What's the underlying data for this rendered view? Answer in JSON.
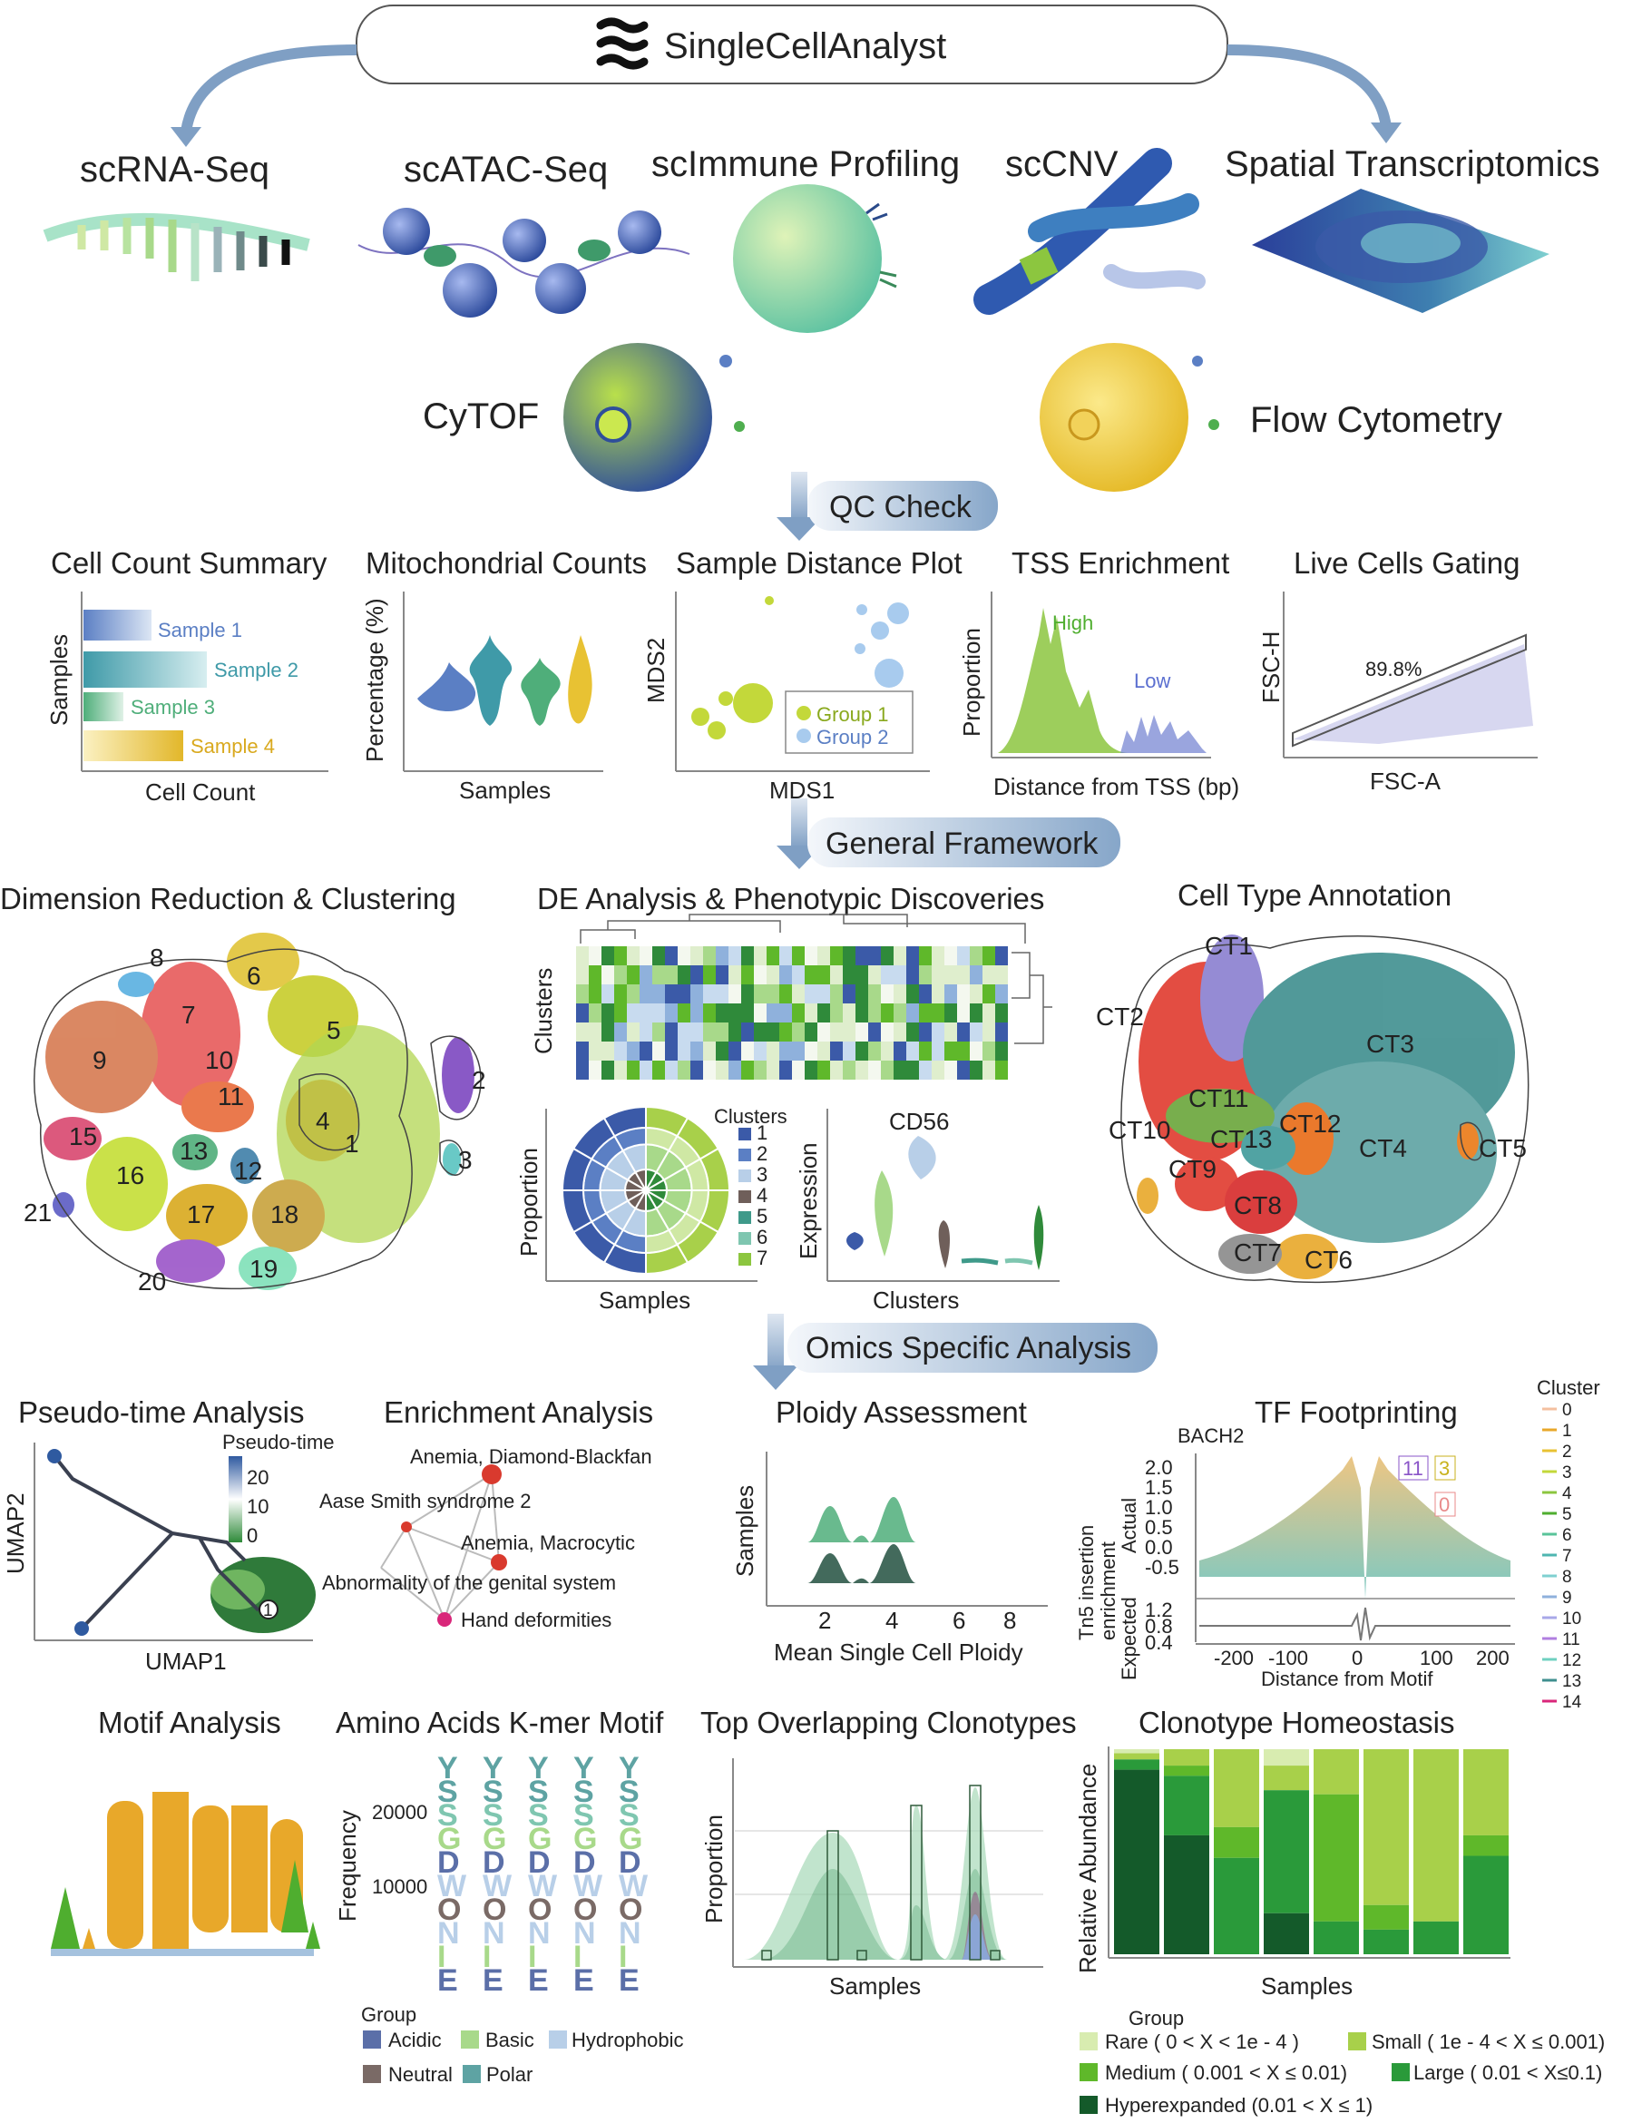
{
  "app": {
    "title": "SingleCellAnalyst"
  },
  "modalities": {
    "scrna": "scRNA-Seq",
    "scatac": "scATAC-Seq",
    "scimmune": "scImmune Profiling",
    "sccnv": "scCNV",
    "spatial": "Spatial Transcriptomics",
    "cytof": "CyTOF",
    "flow": "Flow Cytometry"
  },
  "stages": {
    "qc": "QC Check",
    "general": "General Framework",
    "omics": "Omics Specific Analysis"
  },
  "qc": {
    "cell_count": {
      "title": "Cell Count Summary",
      "ylabel": "Samples",
      "xlabel": "Cell Count",
      "bars": [
        "Sample 1",
        "Sample 2",
        "Sample 3",
        "Sample 4"
      ]
    },
    "mito": {
      "title": "Mitochondrial Counts",
      "ylabel": "Percentage (%)",
      "xlabel": "Samples"
    },
    "mds": {
      "title": "Sample Distance Plot",
      "xlabel": "MDS1",
      "ylabel": "MDS2",
      "legend": [
        "Group 1",
        "Group 2"
      ]
    },
    "tss": {
      "title": "TSS Enrichment",
      "ylabel": "Proportion",
      "xlabel": "Distance from TSS (bp)",
      "high": "High",
      "low": "Low"
    },
    "gating": {
      "title": "Live Cells Gating",
      "ylabel": "FSC-H",
      "xlabel": "FSC-A",
      "pct": "89.8%"
    }
  },
  "general": {
    "dimred": {
      "title": "Dimension Reduction & Clustering",
      "labels": [
        "1",
        "2",
        "3",
        "4",
        "5",
        "6",
        "7",
        "8",
        "9",
        "10",
        "11",
        "12",
        "13",
        "15",
        "16",
        "17",
        "18",
        "19",
        "20",
        "21"
      ]
    },
    "de": {
      "title": "DE Analysis & Phenotypic Discoveries",
      "heat_ylabel": "Clusters",
      "rose_ylabel": "Proportion",
      "rose_xlabel": "Samples",
      "legend_title": "Clusters",
      "legend": [
        "1",
        "2",
        "3",
        "4",
        "5",
        "6",
        "7"
      ],
      "violin_title": "CD56",
      "violin_ylabel": "Expression",
      "violin_xlabel": "Clusters"
    },
    "celltype": {
      "title": "Cell Type Annotation",
      "labels": [
        "CT1",
        "CT2",
        "CT3",
        "CT4",
        "CT5",
        "CT6",
        "CT7",
        "CT8",
        "CT9",
        "CT10",
        "CT11",
        "CT12",
        "CT13"
      ]
    }
  },
  "omics": {
    "pseudo": {
      "title": "Pseudo-time Analysis",
      "legend_title": "Pseudo-time",
      "ticks": [
        "20",
        "10",
        "0"
      ],
      "xlabel": "UMAP1",
      "ylabel": "UMAP2",
      "node": "1"
    },
    "enrich": {
      "title": "Enrichment Analysis",
      "terms": [
        "Anemia, Diamond-Blackfan",
        "Aase Smith syndrome 2",
        "Anemia, Macrocytic",
        "Abnormality of the genital system",
        "Hand deformities"
      ]
    },
    "ploidy": {
      "title": "Ploidy Assessment",
      "ylabel": "Samples",
      "xlabel": "Mean Single Cell Ploidy",
      "ticks": [
        "2",
        "4",
        "6",
        "8"
      ]
    },
    "tf": {
      "title": "TF Footprinting",
      "motif": "BACH2",
      "ylabel_top": "Tn5 insertion",
      "ylabel_mid": "enrichment",
      "ylabel_actual": "Actual",
      "ylabel_expected": "Expected",
      "yticks": [
        "2.0",
        "1.5",
        "1.0",
        "0.5",
        "0.0",
        "-0.5"
      ],
      "yticks2": [
        "1.2",
        "0.8",
        "0.4"
      ],
      "xticks": [
        "-200",
        "-100",
        "0",
        "100",
        "200"
      ],
      "xlabel": "Distance from Motif",
      "callouts": [
        "11",
        "3",
        "0"
      ],
      "legend_title": "Cluster",
      "clusters": [
        "0",
        "1",
        "2",
        "3",
        "4",
        "5",
        "6",
        "7",
        "8",
        "9",
        "10",
        "11",
        "12",
        "13",
        "14"
      ]
    },
    "motif": {
      "title": "Motif Analysis"
    },
    "kmer": {
      "title": "Amino Acids K-mer Motif",
      "ylabel": "Frequency",
      "yticks": [
        "20000",
        "10000"
      ],
      "group_title": "Group",
      "groups": [
        "Acidic",
        "Basic",
        "Hydrophobic",
        "Neutral",
        "Polar"
      ]
    },
    "clonotypes": {
      "title": "Top Overlapping Clonotypes",
      "ylabel": "Proportion",
      "xlabel": "Samples"
    },
    "homeostasis": {
      "title": "Clonotype Homeostasis",
      "ylabel": "Relative Abundance",
      "xlabel": "Samples",
      "group_title": "Group",
      "groups": [
        "Rare ( 0 < X < 1e - 4 )",
        "Small ( 1e - 4 < X ≤ 0.001)",
        "Medium ( 0.001 < X ≤ 0.01)",
        "Large ( 0.01 < X≤0.1)",
        "Hyperexpanded (0.01 < X ≤ 1)"
      ]
    }
  },
  "colors": {
    "green_light": "#cfe8a4",
    "green_mid": "#8cc63f",
    "green_dark": "#2f7a3a",
    "green_deep": "#145a2a",
    "blue_light": "#b8cfe8",
    "blue_mid": "#5b7fc4",
    "blue_dark": "#2f4f8a",
    "teal": "#3f8f8f",
    "yellow": "#e8c233",
    "red": "#d93a2e",
    "purple": "#8a55c8"
  }
}
